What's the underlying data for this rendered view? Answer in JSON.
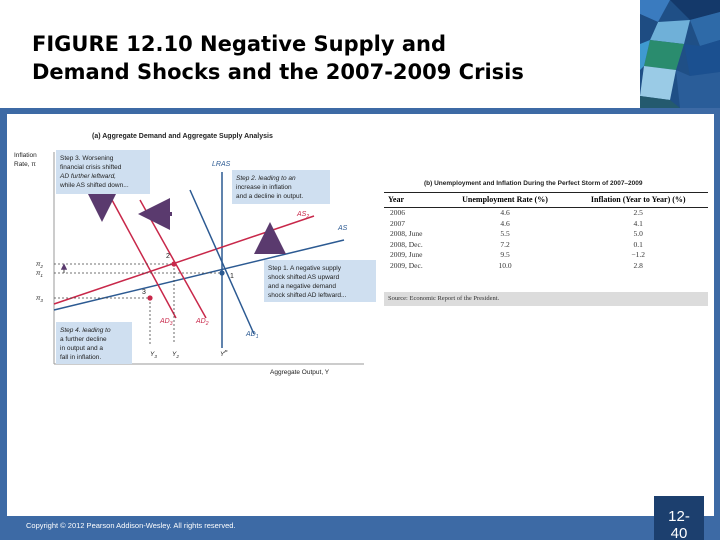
{
  "slide": {
    "title_line1": "FIGURE 12.10  Negative Supply and",
    "title_line2": "Demand Shocks and the 2007-2009 Crisis",
    "copyright": "Copyright © 2012 Pearson Addison-Wesley. All rights reserved.",
    "slide_number_line1": "12-",
    "slide_number_line2": "40"
  },
  "colors": {
    "frame_blue": "#3d6aa5",
    "curve_red": "#c8284a",
    "curve_blue": "#2c5a92",
    "callout_fill": "#cfdff0",
    "arrow_purple": "#5a3a6e"
  },
  "diagram": {
    "panel_title": "(a) Aggregate Demand and Aggregate Supply Analysis",
    "y_axis_label_1": "Inflation",
    "y_axis_label_2": "Rate, π",
    "x_axis_label": "Aggregate Output, Y",
    "curve_labels": {
      "lras": "LRAS",
      "as2": "AS",
      "as2_sub": "2",
      "as1": "AS",
      "ad3": "AD",
      "ad3_sub": "3",
      "ad2": "AD",
      "ad2_sub": "2",
      "ad1": "AD",
      "ad1_sub": "1"
    },
    "points": {
      "p1": "1",
      "p2": "2",
      "p3": "3"
    },
    "y_ticks": {
      "pi2": "π",
      "pi2_sub": "2",
      "pi1": "π",
      "pi1_sub": "1",
      "pi3": "π",
      "pi3_sub": "3"
    },
    "x_ticks": {
      "y3": "Y",
      "y3_sub": "3",
      "y2": "Y",
      "y2_sub": "2",
      "yp": "Y",
      "yp_sup": "P"
    },
    "step3": [
      "Step 3. Worsening",
      "financial crisis shifted",
      "AD further leftward,",
      "while AS shifted down..."
    ],
    "step2": [
      "Step 2. leading to an",
      "increase in inflation",
      "and a decline in output."
    ],
    "step1": [
      "Step 1. A negative supply",
      "shock shifted AS upward",
      "and a negative demand",
      "shock shifted AD leftward..."
    ],
    "step4": [
      "Step 4. leading to",
      "a further decline",
      "in output and a",
      "fall in inflation."
    ]
  },
  "table": {
    "title": "(b) Unemployment and Inflation During the Perfect Storm of 2007–2009",
    "headers": [
      "Year",
      "Unemployment Rate (%)",
      "Inflation (Year to Year) (%)"
    ],
    "rows": [
      [
        "2006",
        "4.6",
        "2.5"
      ],
      [
        "2007",
        "4.6",
        "4.1"
      ],
      [
        "2008, June",
        "5.5",
        "5.0"
      ],
      [
        "2008, Dec.",
        "7.2",
        "0.1"
      ],
      [
        "2009, June",
        "9.5",
        "−1.2"
      ],
      [
        "2009, Dec.",
        "10.0",
        "2.8"
      ]
    ],
    "source": "Source: Economic Report of the President."
  }
}
